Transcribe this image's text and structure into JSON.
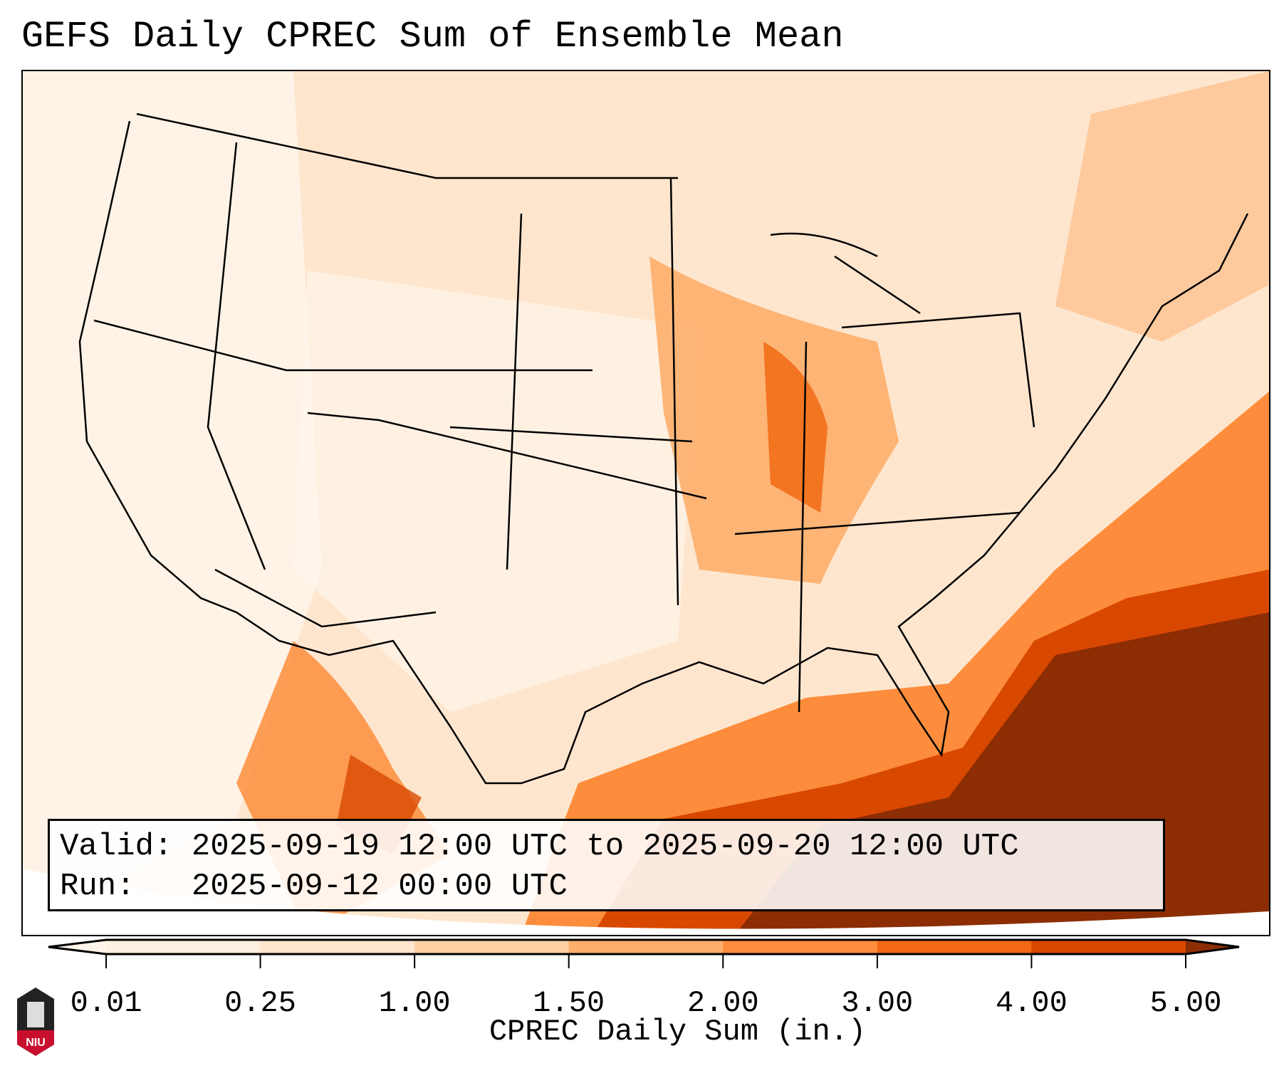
{
  "title": "GEFS Daily CPREC Sum of Ensemble Mean",
  "info": {
    "valid": "Valid: 2025-09-19 12:00 UTC to 2025-09-20 12:00 UTC",
    "run": "Run:   2025-09-12 00:00 UTC"
  },
  "logo_text": "NIU",
  "chart_data": {
    "type": "heatmap",
    "title": "GEFS Daily CPREC Sum of Ensemble Mean",
    "region": "Continental United States",
    "colorbar": {
      "label": "CPREC Daily Sum (in.)",
      "ticks": [
        "0.01",
        "0.25",
        "1.00",
        "1.50",
        "2.00",
        "3.00",
        "4.00",
        "5.00"
      ],
      "levels": [
        0.01,
        0.25,
        1.0,
        1.5,
        2.0,
        3.0,
        4.0,
        5.0
      ],
      "colors": [
        "#fff5eb",
        "#fee6ce",
        "#fdd0a2",
        "#fdae6b",
        "#fd8d3c",
        "#f16913",
        "#d94801",
        "#8c2d04"
      ],
      "extend": "both"
    }
  }
}
